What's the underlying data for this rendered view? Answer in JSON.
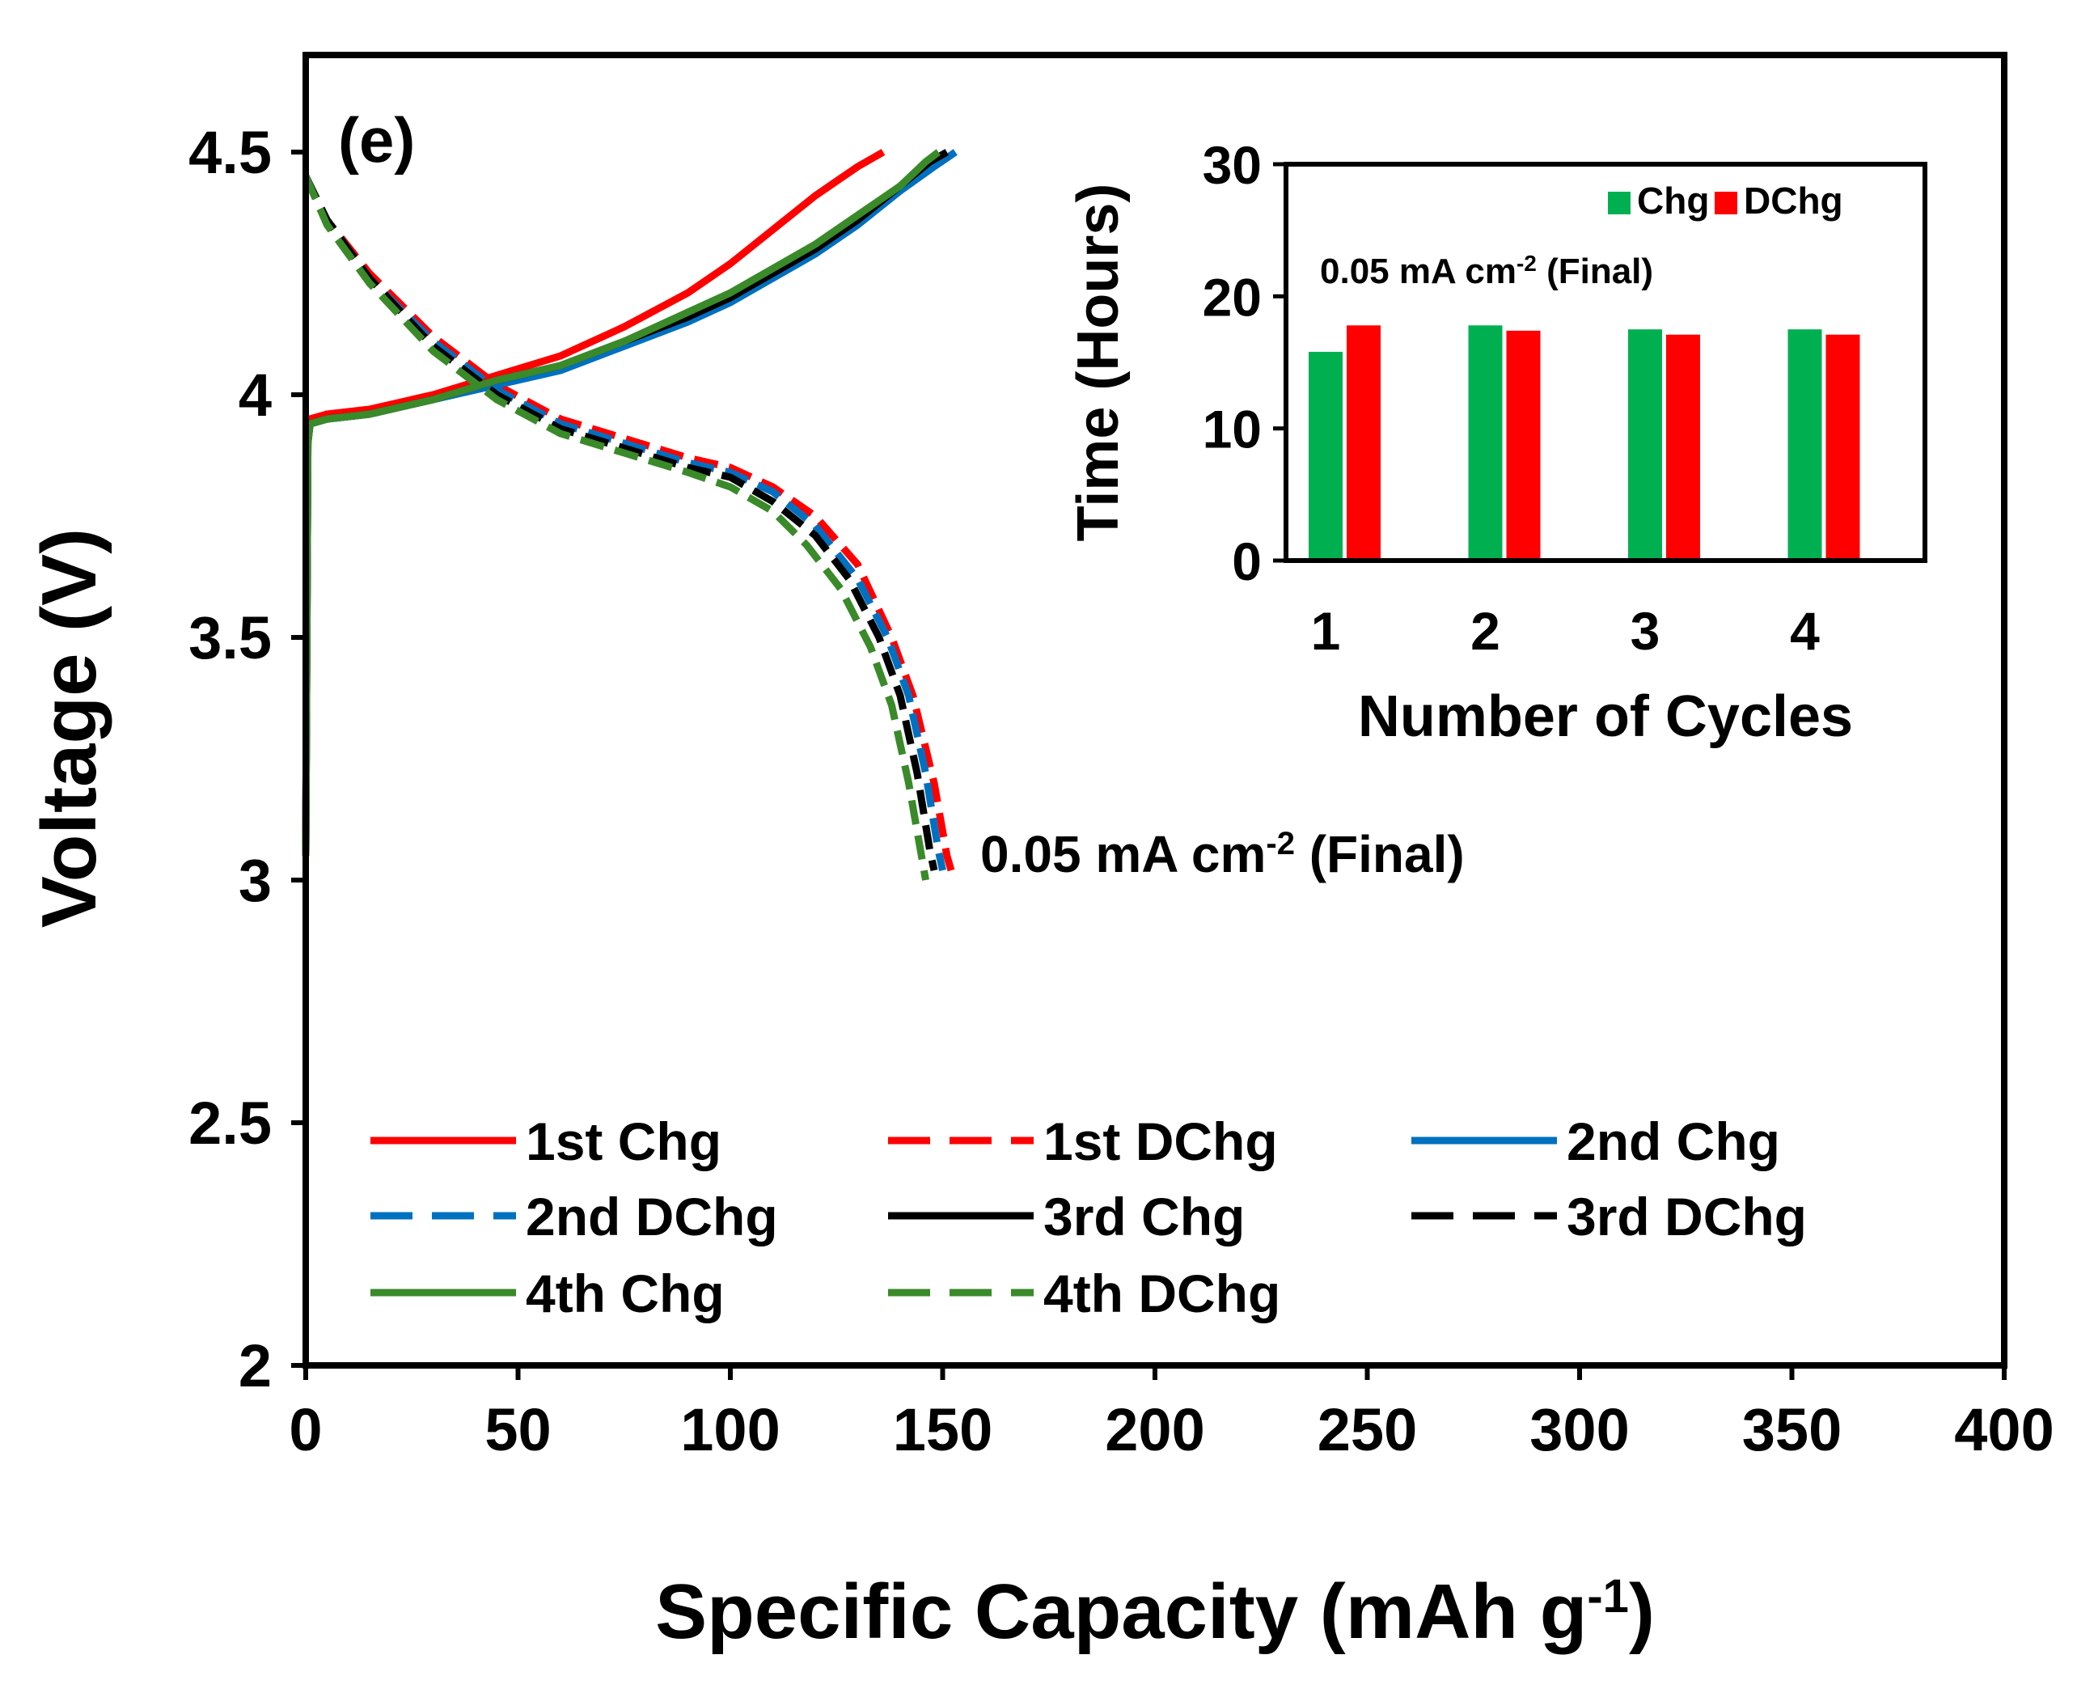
{
  "chart_data": [
    {
      "type": "line",
      "panel_label": "(e)",
      "xlabel": "Specific Capacity (mAh g",
      "xlabel_sup": "-1",
      "xlabel_close": ")",
      "ylabel": "Voltage  (V)",
      "xlim": [
        0,
        400
      ],
      "ylim": [
        2,
        4.7
      ],
      "xticks": [
        0,
        50,
        100,
        150,
        200,
        250,
        300,
        350,
        400
      ],
      "yticks": [
        2,
        2.5,
        3,
        3.5,
        4,
        4.5
      ],
      "ytick_labels": [
        "2",
        "2.5",
        "3",
        "3.5",
        "4",
        "4.5"
      ],
      "annotation": {
        "text": "0.05 mA cm",
        "sup": "-2",
        "suffix": " (Final)"
      },
      "series": [
        {
          "name": "1st Chg",
          "color": "#ff0000",
          "dash": "solid",
          "points": [
            [
              0,
              3.05
            ],
            [
              0.5,
              3.9
            ],
            [
              1,
              3.95
            ],
            [
              5,
              3.96
            ],
            [
              15,
              3.97
            ],
            [
              30,
              4.0
            ],
            [
              45,
              4.04
            ],
            [
              60,
              4.08
            ],
            [
              75,
              4.14
            ],
            [
              90,
              4.21
            ],
            [
              100,
              4.27
            ],
            [
              110,
              4.34
            ],
            [
              120,
              4.41
            ],
            [
              130,
              4.47
            ],
            [
              136,
              4.5
            ]
          ]
        },
        {
          "name": "1st DChg",
          "color": "#ff0000",
          "dash": "dash",
          "points": [
            [
              0,
              4.45
            ],
            [
              5,
              4.36
            ],
            [
              15,
              4.25
            ],
            [
              30,
              4.12
            ],
            [
              45,
              4.02
            ],
            [
              60,
              3.95
            ],
            [
              75,
              3.91
            ],
            [
              90,
              3.87
            ],
            [
              100,
              3.85
            ],
            [
              110,
              3.81
            ],
            [
              120,
              3.75
            ],
            [
              130,
              3.65
            ],
            [
              138,
              3.5
            ],
            [
              143,
              3.38
            ],
            [
              148,
              3.2
            ],
            [
              151,
              3.05
            ],
            [
              152,
              3.02
            ]
          ]
        },
        {
          "name": "2nd Chg",
          "color": "#0070c0",
          "dash": "solid",
          "points": [
            [
              0,
              3.05
            ],
            [
              0.5,
              3.9
            ],
            [
              1,
              3.94
            ],
            [
              5,
              3.95
            ],
            [
              15,
              3.96
            ],
            [
              30,
              3.99
            ],
            [
              45,
              4.02
            ],
            [
              60,
              4.05
            ],
            [
              75,
              4.1
            ],
            [
              90,
              4.15
            ],
            [
              100,
              4.19
            ],
            [
              110,
              4.24
            ],
            [
              120,
              4.29
            ],
            [
              130,
              4.35
            ],
            [
              140,
              4.42
            ],
            [
              148,
              4.47
            ],
            [
              153,
              4.5
            ]
          ]
        },
        {
          "name": "2nd DChg",
          "color": "#0070c0",
          "dash": "dash",
          "points": [
            [
              0,
              4.45
            ],
            [
              5,
              4.36
            ],
            [
              15,
              4.24
            ],
            [
              30,
              4.11
            ],
            [
              45,
              4.01
            ],
            [
              60,
              3.94
            ],
            [
              75,
              3.9
            ],
            [
              90,
              3.86
            ],
            [
              100,
              3.84
            ],
            [
              110,
              3.8
            ],
            [
              120,
              3.73
            ],
            [
              130,
              3.62
            ],
            [
              137,
              3.5
            ],
            [
              142,
              3.38
            ],
            [
              146,
              3.22
            ],
            [
              149,
              3.06
            ],
            [
              150,
              3.02
            ]
          ]
        },
        {
          "name": "3rd Chg",
          "color": "#000000",
          "dash": "solid",
          "points": [
            [
              0,
              3.05
            ],
            [
              0.5,
              3.9
            ],
            [
              1,
              3.94
            ],
            [
              5,
              3.95
            ],
            [
              15,
              3.96
            ],
            [
              30,
              3.99
            ],
            [
              45,
              4.03
            ],
            [
              60,
              4.06
            ],
            [
              75,
              4.11
            ],
            [
              90,
              4.16
            ],
            [
              100,
              4.2
            ],
            [
              110,
              4.25
            ],
            [
              120,
              4.3
            ],
            [
              130,
              4.36
            ],
            [
              140,
              4.43
            ],
            [
              147,
              4.48
            ],
            [
              151,
              4.5
            ]
          ]
        },
        {
          "name": "3rd DChg",
          "color": "#000000",
          "dash": "dash",
          "points": [
            [
              0,
              4.45
            ],
            [
              5,
              4.36
            ],
            [
              15,
              4.24
            ],
            [
              30,
              4.1
            ],
            [
              45,
              4.0
            ],
            [
              60,
              3.93
            ],
            [
              75,
              3.89
            ],
            [
              90,
              3.85
            ],
            [
              100,
              3.83
            ],
            [
              110,
              3.78
            ],
            [
              120,
              3.71
            ],
            [
              128,
              3.62
            ],
            [
              135,
              3.5
            ],
            [
              140,
              3.38
            ],
            [
              144,
              3.22
            ],
            [
              147,
              3.06
            ],
            [
              148,
              3.02
            ]
          ]
        },
        {
          "name": "4th Chg",
          "color": "#3a8a2a",
          "dash": "solid",
          "points": [
            [
              0,
              3.05
            ],
            [
              0.5,
              3.9
            ],
            [
              1,
              3.94
            ],
            [
              5,
              3.95
            ],
            [
              15,
              3.96
            ],
            [
              30,
              3.99
            ],
            [
              45,
              4.03
            ],
            [
              60,
              4.06
            ],
            [
              75,
              4.11
            ],
            [
              90,
              4.17
            ],
            [
              100,
              4.21
            ],
            [
              110,
              4.26
            ],
            [
              120,
              4.31
            ],
            [
              130,
              4.37
            ],
            [
              140,
              4.43
            ],
            [
              146,
              4.48
            ],
            [
              149,
              4.5
            ]
          ]
        },
        {
          "name": "4th DChg",
          "color": "#3a8a2a",
          "dash": "dash",
          "points": [
            [
              0,
              4.45
            ],
            [
              5,
              4.35
            ],
            [
              15,
              4.23
            ],
            [
              30,
              4.09
            ],
            [
              45,
              3.99
            ],
            [
              60,
              3.92
            ],
            [
              75,
              3.88
            ],
            [
              90,
              3.84
            ],
            [
              100,
              3.81
            ],
            [
              110,
              3.76
            ],
            [
              118,
              3.69
            ],
            [
              126,
              3.6
            ],
            [
              133,
              3.48
            ],
            [
              138,
              3.36
            ],
            [
              142,
              3.2
            ],
            [
              145,
              3.05
            ],
            [
              146,
              3.0
            ]
          ]
        }
      ]
    },
    {
      "type": "bar",
      "title": "0.05 mA cm",
      "title_sup": "-2",
      "title_suffix": " (Final)",
      "xlabel": "Number of Cycles",
      "ylabel": "Time (Hours)",
      "categories": [
        "1",
        "2",
        "3",
        "4"
      ],
      "ylim": [
        0,
        30
      ],
      "yticks": [
        0,
        10,
        20,
        30
      ],
      "series": [
        {
          "name": "Chg",
          "color": "#00b050",
          "values": [
            15.8,
            17.8,
            17.5,
            17.5
          ]
        },
        {
          "name": "DChg",
          "color": "#ff0000",
          "values": [
            17.8,
            17.4,
            17.1,
            17.1
          ]
        }
      ]
    }
  ]
}
